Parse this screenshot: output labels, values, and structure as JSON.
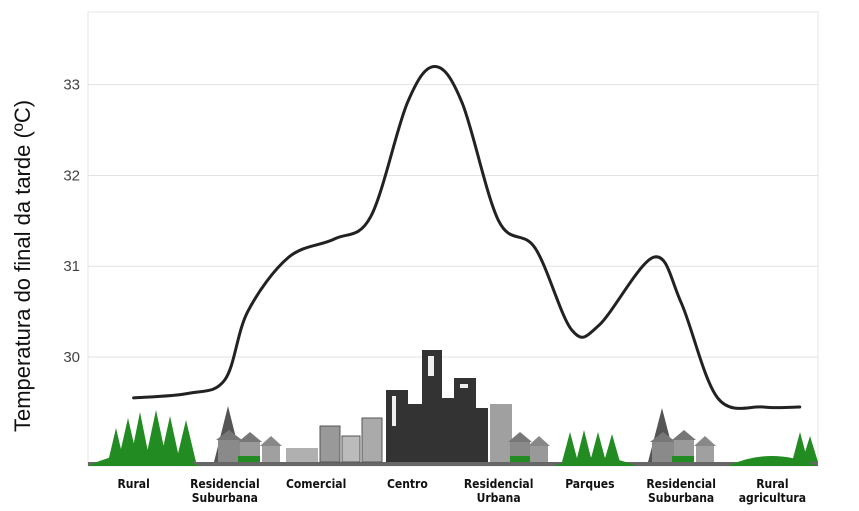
{
  "chart_data": {
    "type": "line",
    "title": "",
    "ylabel": "Temperatura do final da tarde (ºC)",
    "xlabel": "",
    "ylim": [
      28.8,
      33.8
    ],
    "yticks": [
      30,
      31,
      32,
      33
    ],
    "grid": true,
    "categories": [
      "Rural",
      "Residencial Suburbana",
      "Comercial",
      "Centro",
      "Residencial Urbana",
      "Parques",
      "Residencial Suburbana",
      "Rural agricultura"
    ],
    "series": [
      {
        "values": [
          29.55,
          29.6,
          29.75,
          30.5,
          31.1,
          31.3,
          31.55,
          32.8,
          33.2,
          32.8,
          31.5,
          31.2,
          30.3,
          30.35,
          31.1,
          30.6,
          29.55,
          29.45,
          29.45
        ],
        "positions": [
          0,
          0.6,
          1,
          1.25,
          1.7,
          2.2,
          2.6,
          3.0,
          3.3,
          3.6,
          4.0,
          4.4,
          4.8,
          5.1,
          5.7,
          6.0,
          6.4,
          6.9,
          7.3
        ]
      }
    ],
    "colors": {
      "line": "#222222",
      "grid": "#e2e2e2",
      "tree": "#228b22",
      "building": "#808080",
      "downtown": "#333333"
    }
  }
}
